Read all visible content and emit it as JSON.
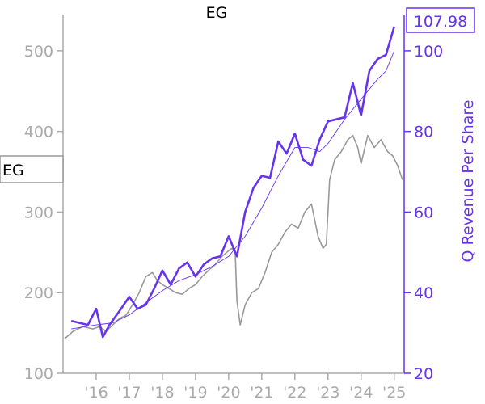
{
  "chart_data": {
    "type": "line",
    "title": "EG",
    "ylabel_right": "Q Revenue Per Share",
    "price_tag": "EG",
    "latest_value_tag": "107.98",
    "x_ticks": [
      "'16",
      "'17",
      "'18",
      "'19",
      "'20",
      "'21",
      "'22",
      "'23",
      "'24",
      "'25"
    ],
    "x_tick_values": [
      2016,
      2017,
      2018,
      2019,
      2020,
      2021,
      2022,
      2023,
      2024,
      2025
    ],
    "xlim": [
      2015.0,
      2025.3
    ],
    "y_left": {
      "ticks": [
        "100",
        "200",
        "300",
        "400",
        "500"
      ],
      "tick_values": [
        100,
        200,
        300,
        400,
        500
      ],
      "lim": [
        100,
        545
      ]
    },
    "y_right": {
      "ticks": [
        "20",
        "40",
        "60",
        "80",
        "100"
      ],
      "tick_values": [
        20,
        40,
        60,
        80,
        100
      ],
      "lim": [
        20,
        109
      ]
    },
    "colors": {
      "price": "#999999",
      "revenue": "#6633ee",
      "left_axis": "#aaaaaa",
      "right_axis": "#6633ee",
      "text": "#000000"
    },
    "series": [
      {
        "role": "price",
        "axis": "left",
        "x": [
          2015.05,
          2015.3,
          2015.6,
          2015.9,
          2016.1,
          2016.3,
          2016.5,
          2016.7,
          2016.9,
          2017.1,
          2017.3,
          2017.5,
          2017.7,
          2017.85,
          2018.0,
          2018.2,
          2018.4,
          2018.6,
          2018.8,
          2019.0,
          2019.2,
          2019.4,
          2019.6,
          2019.8,
          2020.0,
          2020.1,
          2020.2,
          2020.25,
          2020.35,
          2020.5,
          2020.7,
          2020.9,
          2021.1,
          2021.3,
          2021.5,
          2021.7,
          2021.9,
          2022.1,
          2022.3,
          2022.5,
          2022.7,
          2022.85,
          2022.95,
          2023.05,
          2023.2,
          2023.4,
          2023.6,
          2023.75,
          2023.9,
          2024.0,
          2024.2,
          2024.4,
          2024.6,
          2024.8,
          2024.95,
          2025.1,
          2025.25
        ],
        "values": [
          143,
          152,
          158,
          155,
          158,
          152,
          160,
          168,
          172,
          185,
          200,
          220,
          225,
          215,
          210,
          205,
          200,
          198,
          205,
          210,
          220,
          228,
          235,
          245,
          252,
          255,
          250,
          190,
          160,
          185,
          200,
          205,
          225,
          250,
          260,
          275,
          285,
          280,
          300,
          310,
          270,
          255,
          260,
          340,
          365,
          375,
          390,
          395,
          380,
          360,
          395,
          380,
          390,
          375,
          370,
          358,
          340
        ]
      },
      {
        "role": "q_revenue_per_share",
        "axis": "right",
        "name": "Q Revenue Per Share",
        "x": [
          2015.25,
          2015.5,
          2015.75,
          2016.0,
          2016.2,
          2016.4,
          2016.75,
          2017.0,
          2017.25,
          2017.5,
          2017.75,
          2018.0,
          2018.25,
          2018.5,
          2018.75,
          2019.0,
          2019.25,
          2019.5,
          2019.75,
          2020.0,
          2020.25,
          2020.5,
          2020.75,
          2021.0,
          2021.25,
          2021.5,
          2021.75,
          2022.0,
          2022.25,
          2022.5,
          2022.75,
          2023.0,
          2023.25,
          2023.5,
          2023.75,
          2024.0,
          2024.25,
          2024.5,
          2024.75,
          2025.0
        ],
        "values": [
          33,
          32.5,
          32,
          36,
          29,
          32,
          36,
          39,
          36,
          37,
          41,
          45.5,
          42,
          46,
          47.5,
          44,
          47,
          48.5,
          49,
          54,
          49,
          60,
          66,
          69,
          68.5,
          77.5,
          74.5,
          79.5,
          73,
          71.5,
          78,
          82.5,
          83,
          83.5,
          92,
          84,
          95,
          98,
          99,
          106
        ]
      },
      {
        "role": "q_revenue_trend",
        "axis": "right",
        "x": [
          2015.25,
          2016.0,
          2016.5,
          2017.0,
          2017.5,
          2018.0,
          2018.5,
          2019.0,
          2019.5,
          2020.0,
          2020.5,
          2021.0,
          2021.5,
          2022.0,
          2022.4,
          2022.75,
          2023.0,
          2023.5,
          2024.0,
          2024.5,
          2024.75,
          2025.0
        ],
        "values": [
          31,
          32,
          32.5,
          34.5,
          37.5,
          40.5,
          43,
          44.5,
          46.5,
          49,
          54,
          61,
          69,
          76,
          76,
          75,
          77,
          83,
          88,
          93,
          95,
          100
        ]
      }
    ]
  }
}
